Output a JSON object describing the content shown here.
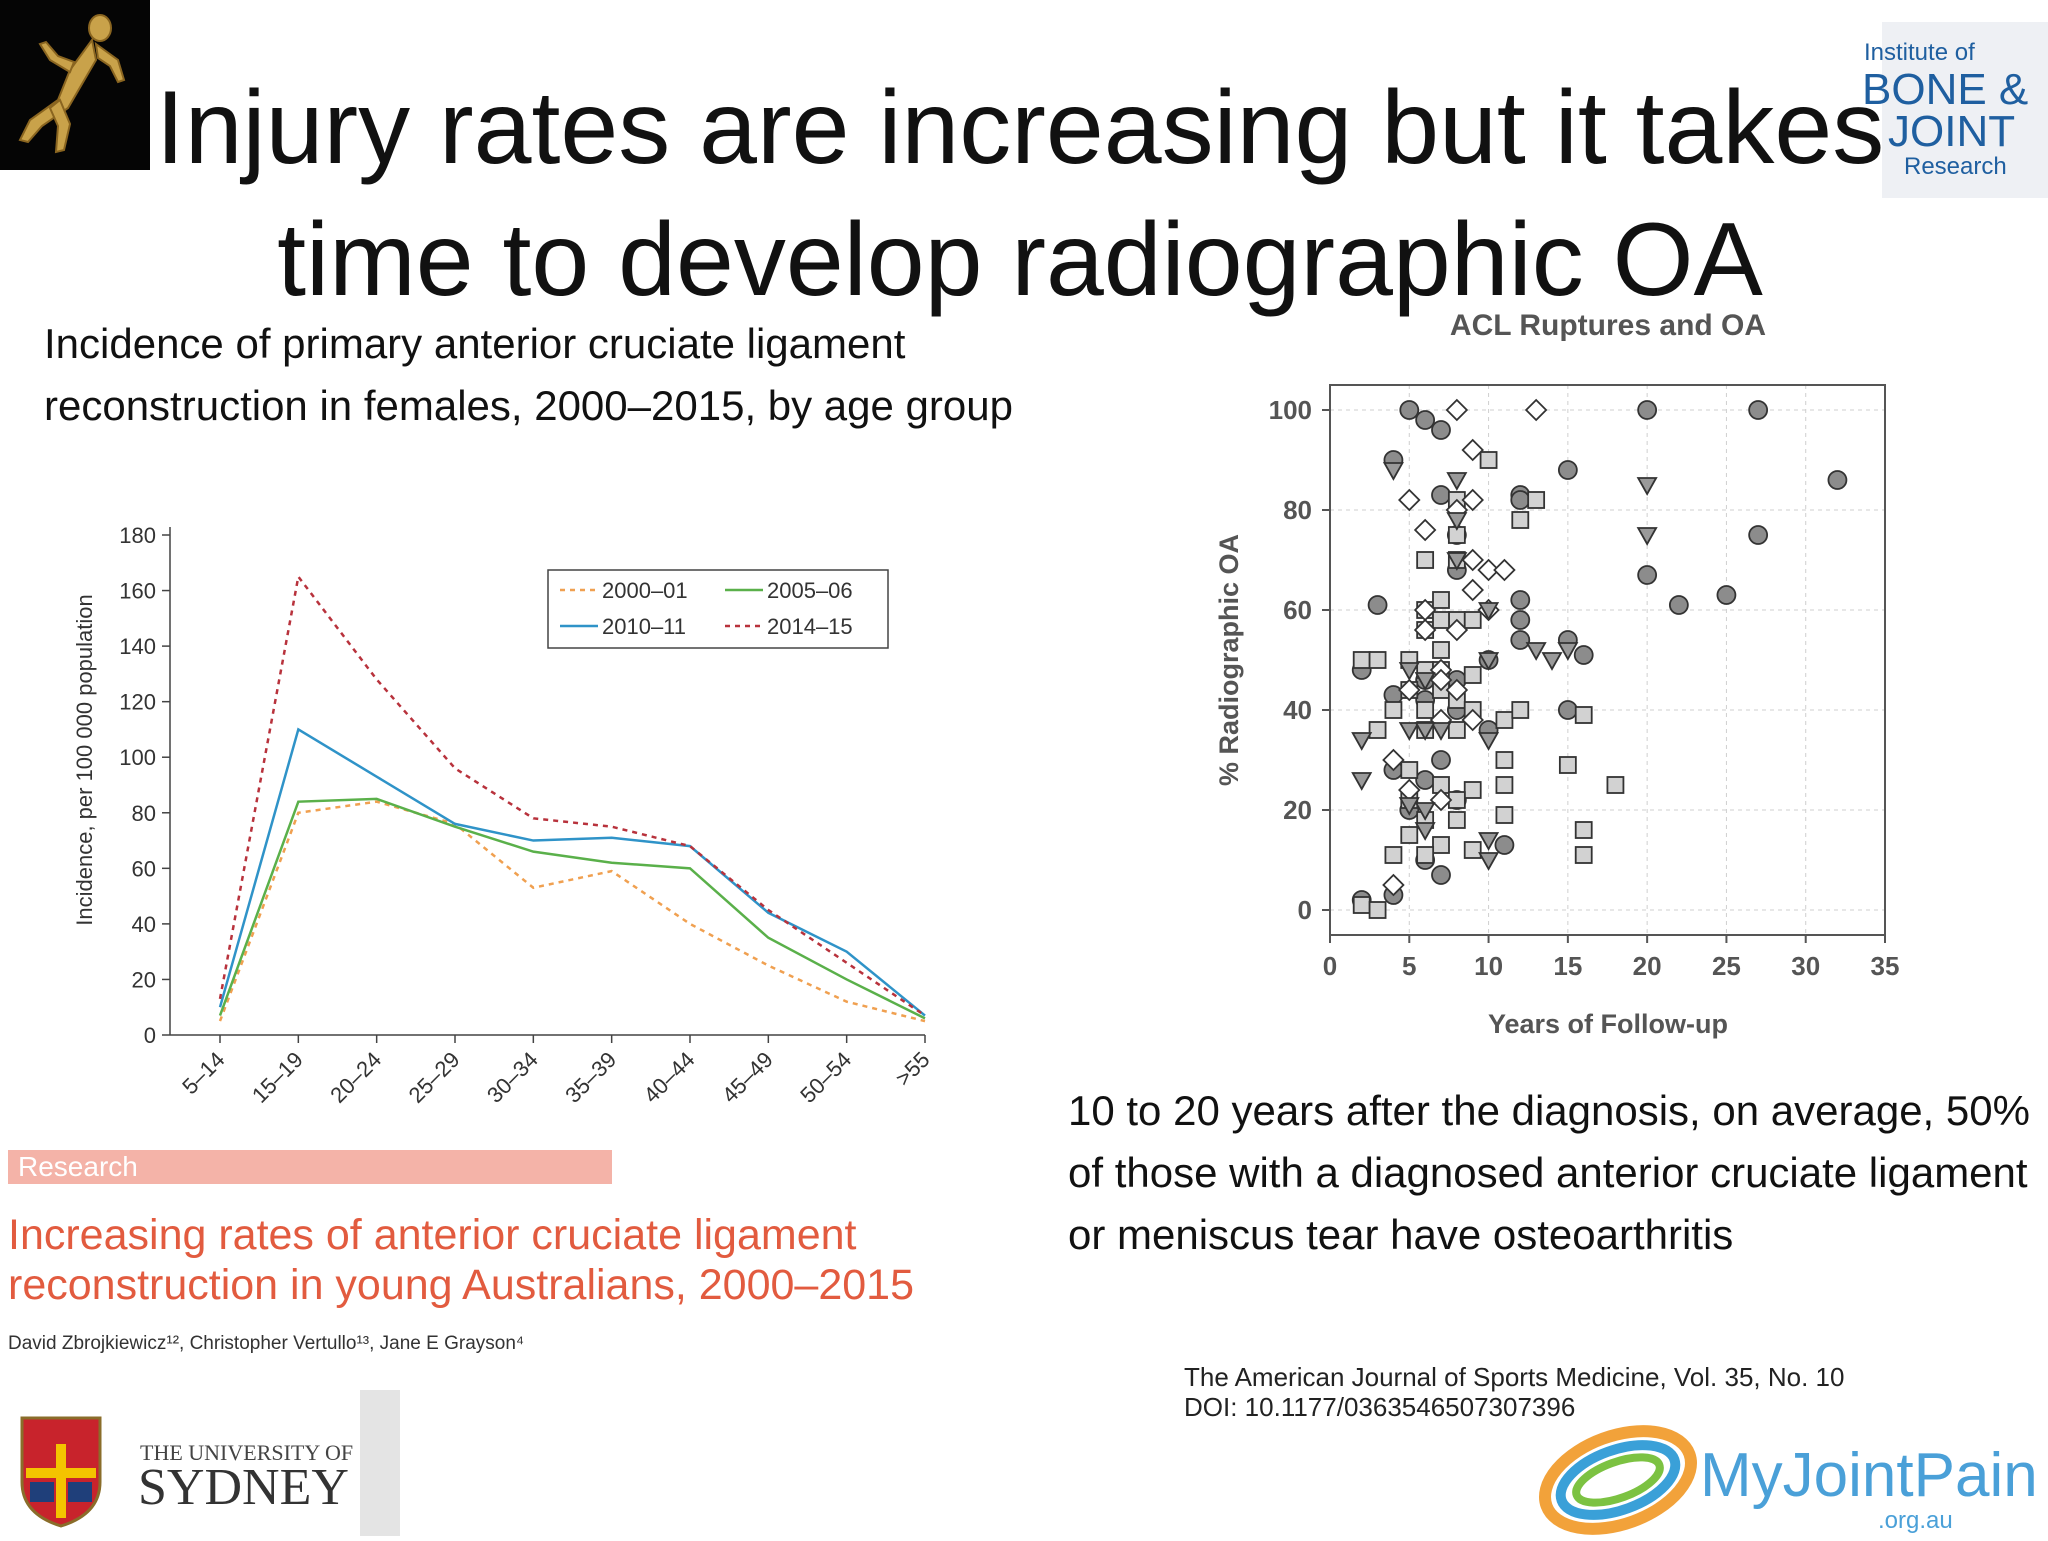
{
  "slide": {
    "title": "Injury rates are increasing but it takes time to develop radiographic OA",
    "left_caption": "Incidence of primary anterior cruciate ligament reconstruction in females, 2000–2015, by age group",
    "right_caption": "10 to 20 years after the diagnosis, on average, 50% of those with a diagnosed anterior cruciate ligament or meniscus tear have osteoarthritis"
  },
  "paper": {
    "section_tag": "Research",
    "title": "Increasing rates of anterior cruciate ligament reconstruction in young Australians, 2000–2015",
    "authors": "David Zbrojkiewicz¹², Christopher Vertullo¹³, Jane E Grayson⁴"
  },
  "logos": {
    "ibjr": {
      "line1": "Institute of",
      "line2": "BONE &",
      "line3": "JOINT",
      "line4": "Research"
    },
    "university": {
      "line1": "THE UNIVERSITY OF",
      "line2": "SYDNEY"
    },
    "myjointpain": {
      "name": "MyJointPain",
      "domain": ".org.au"
    }
  },
  "journal": {
    "citation": "The American Journal of Sports Medicine, Vol. 35, No. 10",
    "doi": "DOI: 10.1177/0363546507307396"
  },
  "chart_data": [
    {
      "type": "line",
      "ylabel": "Incidence, per 100 000 population",
      "xlabel": "",
      "categories": [
        "5–14",
        "15–19",
        "20–24",
        "25–29",
        "30–34",
        "35–39",
        "40–44",
        "45–49",
        "50–54",
        ">55"
      ],
      "ylim": [
        0,
        180
      ],
      "yticks": [
        0,
        20,
        40,
        60,
        80,
        100,
        120,
        140,
        160,
        180
      ],
      "legend_position": "top-right",
      "series": [
        {
          "name": "2000–01",
          "color": "#f0a050",
          "style": "dotted",
          "values": [
            5,
            80,
            84,
            76,
            53,
            59,
            40,
            25,
            12,
            5
          ]
        },
        {
          "name": "2005–06",
          "color": "#5ab04a",
          "style": "solid",
          "values": [
            7,
            84,
            85,
            75,
            66,
            62,
            60,
            35,
            20,
            6
          ]
        },
        {
          "name": "2010–11",
          "color": "#2f93c8",
          "style": "solid",
          "values": [
            10,
            110,
            93,
            76,
            70,
            71,
            68,
            44,
            30,
            7
          ]
        },
        {
          "name": "2014–15",
          "color": "#b8323c",
          "style": "dotted",
          "values": [
            13,
            165,
            128,
            96,
            78,
            75,
            68,
            45,
            26,
            7
          ]
        }
      ]
    },
    {
      "type": "scatter",
      "title": "ACL Ruptures and OA",
      "xlabel": "Years of Follow-up",
      "ylabel": "% Radiographic OA",
      "xlim": [
        0,
        35
      ],
      "ylim": [
        -5,
        105
      ],
      "xticks": [
        0,
        5,
        10,
        15,
        20,
        25,
        30,
        35
      ],
      "yticks": [
        0,
        20,
        40,
        60,
        80,
        100
      ],
      "grid": true,
      "series": [
        {
          "marker": "circle",
          "points": [
            [
              5,
              100
            ],
            [
              6,
              98
            ],
            [
              7,
              96
            ],
            [
              4,
              90
            ],
            [
              7,
              83
            ],
            [
              8,
              75
            ],
            [
              12,
              83
            ],
            [
              12,
              82
            ],
            [
              15,
              88
            ],
            [
              20,
              100
            ],
            [
              27,
              100
            ],
            [
              32,
              86
            ],
            [
              20,
              67
            ],
            [
              22,
              61
            ],
            [
              25,
              63
            ],
            [
              27,
              75
            ],
            [
              3,
              61
            ],
            [
              8,
              68
            ],
            [
              12,
              62
            ],
            [
              12,
              58
            ],
            [
              12,
              54
            ],
            [
              15,
              54
            ],
            [
              16,
              51
            ],
            [
              10,
              50
            ],
            [
              2,
              48
            ],
            [
              6,
              46
            ],
            [
              8,
              46
            ],
            [
              4,
              43
            ],
            [
              6,
              42
            ],
            [
              8,
              40
            ],
            [
              10,
              36
            ],
            [
              15,
              40
            ],
            [
              7,
              30
            ],
            [
              4,
              28
            ],
            [
              6,
              26
            ],
            [
              8,
              22
            ],
            [
              5,
              20
            ],
            [
              11,
              13
            ],
            [
              7,
              7
            ],
            [
              2,
              2
            ],
            [
              4,
              3
            ],
            [
              6,
              10
            ]
          ]
        },
        {
          "marker": "square",
          "points": [
            [
              10,
              90
            ],
            [
              8,
              82
            ],
            [
              13,
              82
            ],
            [
              12,
              78
            ],
            [
              8,
              75
            ],
            [
              6,
              70
            ],
            [
              8,
              70
            ],
            [
              6,
              60
            ],
            [
              7,
              62
            ],
            [
              8,
              58
            ],
            [
              6,
              56
            ],
            [
              7,
              58
            ],
            [
              9,
              58
            ],
            [
              7,
              52
            ],
            [
              2,
              50
            ],
            [
              3,
              50
            ],
            [
              5,
              50
            ],
            [
              6,
              48
            ],
            [
              7,
              48
            ],
            [
              9,
              47
            ],
            [
              5,
              44
            ],
            [
              7,
              44
            ],
            [
              8,
              42
            ],
            [
              4,
              40
            ],
            [
              6,
              40
            ],
            [
              9,
              40
            ],
            [
              11,
              38
            ],
            [
              12,
              40
            ],
            [
              16,
              39
            ],
            [
              3,
              36
            ],
            [
              6,
              36
            ],
            [
              8,
              36
            ],
            [
              11,
              30
            ],
            [
              15,
              29
            ],
            [
              18,
              25
            ],
            [
              5,
              28
            ],
            [
              7,
              25
            ],
            [
              9,
              24
            ],
            [
              11,
              25
            ],
            [
              5,
              22
            ],
            [
              8,
              22
            ],
            [
              6,
              18
            ],
            [
              8,
              18
            ],
            [
              11,
              19
            ],
            [
              5,
              15
            ],
            [
              7,
              13
            ],
            [
              9,
              12
            ],
            [
              4,
              11
            ],
            [
              6,
              11
            ],
            [
              16,
              16
            ],
            [
              16,
              11
            ],
            [
              2,
              1
            ],
            [
              3,
              0
            ]
          ]
        },
        {
          "marker": "diamond",
          "points": [
            [
              8,
              100
            ],
            [
              13,
              100
            ],
            [
              9,
              92
            ],
            [
              5,
              82
            ],
            [
              9,
              82
            ],
            [
              8,
              80
            ],
            [
              6,
              76
            ],
            [
              9,
              70
            ],
            [
              10,
              68
            ],
            [
              11,
              68
            ],
            [
              9,
              64
            ],
            [
              6,
              60
            ],
            [
              10,
              60
            ],
            [
              6,
              56
            ],
            [
              8,
              56
            ],
            [
              7,
              48
            ],
            [
              7,
              46
            ],
            [
              5,
              44
            ],
            [
              8,
              44
            ],
            [
              7,
              38
            ],
            [
              9,
              38
            ],
            [
              4,
              30
            ],
            [
              5,
              24
            ],
            [
              7,
              22
            ],
            [
              4,
              5
            ]
          ]
        },
        {
          "marker": "triangle",
          "points": [
            [
              4,
              88
            ],
            [
              8,
              86
            ],
            [
              8,
              78
            ],
            [
              8,
              70
            ],
            [
              10,
              60
            ],
            [
              10,
              50
            ],
            [
              13,
              52
            ],
            [
              14,
              50
            ],
            [
              15,
              52
            ],
            [
              5,
              48
            ],
            [
              6,
              46
            ],
            [
              5,
              36
            ],
            [
              7,
              36
            ],
            [
              2,
              34
            ],
            [
              10,
              34
            ],
            [
              2,
              26
            ],
            [
              5,
              21
            ],
            [
              6,
              20
            ],
            [
              6,
              16
            ],
            [
              10,
              14
            ],
            [
              10,
              10
            ],
            [
              20,
              85
            ],
            [
              20,
              75
            ],
            [
              6,
              36
            ]
          ]
        }
      ]
    }
  ]
}
